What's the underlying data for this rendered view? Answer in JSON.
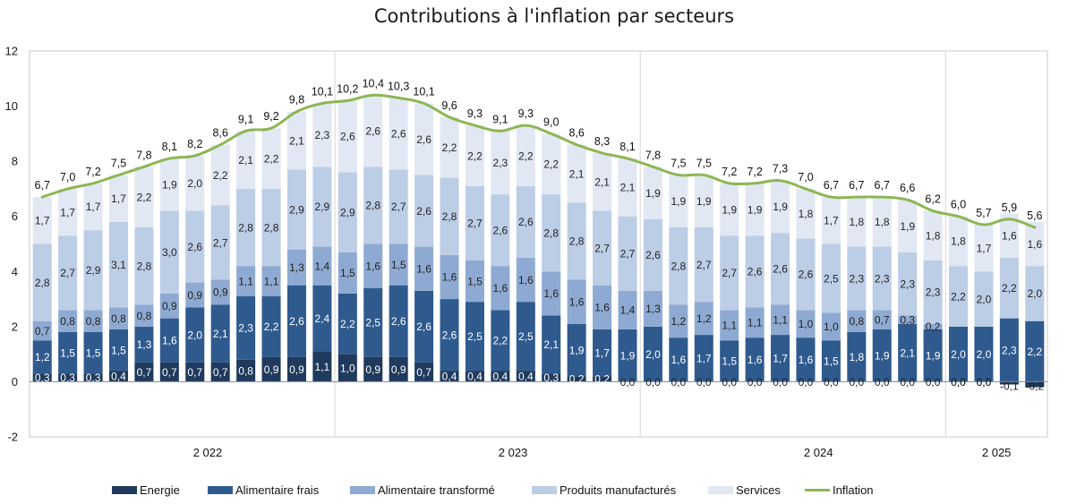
{
  "chart_data": {
    "type": "bar",
    "stacked": true,
    "title": "Contributions à l'inflation par secteurs",
    "xlabel": "",
    "ylabel": "",
    "ylim": [
      -2,
      12
    ],
    "yticks": [
      "-2",
      "0",
      "2",
      "4",
      "6",
      "8",
      "10",
      "12"
    ],
    "year_labels": [
      {
        "label": "2 022",
        "bar_index": 6
      },
      {
        "label": "2 023",
        "bar_index": 18
      },
      {
        "label": "2 024",
        "bar_index": 30
      },
      {
        "label": "2 025",
        "bar_index": 37
      }
    ],
    "year_separators_after_bar": [
      11,
      23,
      35
    ],
    "n_bars": 40,
    "series": [
      {
        "name": "Energie",
        "color": "#1f3a5c",
        "text_color": "light",
        "values": [
          0.3,
          0.3,
          0.3,
          0.4,
          0.7,
          0.7,
          0.7,
          0.7,
          0.8,
          0.9,
          0.9,
          1.1,
          1.0,
          0.9,
          0.9,
          0.7,
          0.4,
          0.4,
          0.4,
          0.4,
          0.3,
          0.2,
          0.2,
          0.0,
          0.0,
          0.0,
          0.0,
          0.0,
          0.0,
          0.0,
          0.0,
          0.0,
          0.0,
          0.0,
          0.0,
          0.0,
          0.0,
          0.0,
          -0.1,
          -0.2
        ],
        "labels": [
          "0,3",
          "0,3",
          "0,3",
          "0,4",
          "0,7",
          "0,7",
          "0,7",
          "0,7",
          "0,8",
          "0,9",
          "0,9",
          "1,1",
          "1,0",
          "0,9",
          "0,9",
          "0,7",
          "0,4",
          "0,4",
          "0,4",
          "0,4",
          "0,3",
          "0,2",
          "0,2",
          "0,0",
          "0,0",
          "0,0",
          "0,0",
          "0,0",
          "0,0",
          "0,0",
          "0,0",
          "0,0",
          "0,0",
          "0,0",
          "0,0",
          "0,0",
          "0,0",
          "0,0",
          "-0,1",
          "-0,2"
        ]
      },
      {
        "name": "Alimentaire frais",
        "color": "#2f5a8e",
        "text_color": "light",
        "values": [
          1.2,
          1.5,
          1.5,
          1.5,
          1.3,
          1.6,
          2.0,
          2.1,
          2.3,
          2.2,
          2.6,
          2.4,
          2.2,
          2.5,
          2.6,
          2.6,
          2.6,
          2.5,
          2.2,
          2.5,
          2.1,
          1.9,
          1.7,
          1.9,
          2.0,
          1.6,
          1.7,
          1.5,
          1.6,
          1.7,
          1.6,
          1.5,
          1.8,
          1.9,
          2.1,
          1.9,
          2.0,
          2.0,
          2.3,
          2.2
        ],
        "labels": [
          "1,2",
          "1,5",
          "1,5",
          "1,5",
          "1,3",
          "1,6",
          "2,0",
          "2,1",
          "2,3",
          "2,2",
          "2,6",
          "2,4",
          "2,2",
          "2,5",
          "2,6",
          "2,6",
          "2,6",
          "2,5",
          "2,2",
          "2,5",
          "2,1",
          "1,9",
          "1,7",
          "1,9",
          "2,0",
          "1,6",
          "1,7",
          "1,5",
          "1,6",
          "1,7",
          "1,6",
          "1,5",
          "1,8",
          "1,9",
          "2,1",
          "1,9",
          "2,0",
          "2,0",
          "2,3",
          "2,2"
        ]
      },
      {
        "name": "Alimentaire transformé",
        "color": "#8eaad2",
        "text_color": "dark",
        "values": [
          0.7,
          0.8,
          0.8,
          0.8,
          0.8,
          0.9,
          0.9,
          0.9,
          1.1,
          1.1,
          1.3,
          1.4,
          1.5,
          1.6,
          1.5,
          1.6,
          1.6,
          1.5,
          1.6,
          1.6,
          1.6,
          1.6,
          1.6,
          1.4,
          1.3,
          1.2,
          1.2,
          1.1,
          1.1,
          1.1,
          1.0,
          1.0,
          0.8,
          0.7,
          0.3,
          0.2,
          0.0,
          0.0,
          0.0,
          0.0
        ],
        "labels": [
          "0,7",
          "0,8",
          "0,8",
          "0,8",
          "0,8",
          "0,9",
          "0,9",
          "0,9",
          "1,1",
          "1,1",
          "1,3",
          "1,4",
          "1,5",
          "1,6",
          "1,5",
          "1,6",
          "1,6",
          "1,5",
          "1,6",
          "1,6",
          "1,6",
          "1,6",
          "1,6",
          "1,4",
          "1,3",
          "1,2",
          "1,2",
          "1,1",
          "1,1",
          "1,1",
          "1,0",
          "1,0",
          "0,8",
          "0,7",
          "0,3",
          "0,2",
          "0,0",
          "0,0",
          "",
          ""
        ]
      },
      {
        "name": "Produits manufacturés",
        "color": "#bccde6",
        "text_color": "dark",
        "values": [
          2.8,
          2.7,
          2.9,
          3.1,
          2.8,
          3.0,
          2.6,
          2.7,
          2.8,
          2.8,
          2.9,
          2.9,
          2.9,
          2.8,
          2.7,
          2.6,
          2.8,
          2.7,
          2.6,
          2.6,
          2.8,
          2.8,
          2.7,
          2.7,
          2.6,
          2.8,
          2.7,
          2.7,
          2.6,
          2.6,
          2.6,
          2.5,
          2.3,
          2.3,
          2.3,
          2.3,
          2.2,
          2.0,
          2.2,
          2.0
        ],
        "labels": [
          "2,8",
          "2,7",
          "2,9",
          "3,1",
          "2,8",
          "3,0",
          "2,6",
          "2,7",
          "2,8",
          "2,8",
          "2,9",
          "2,9",
          "2,9",
          "2,8",
          "2,7",
          "2,6",
          "2,8",
          "2,7",
          "2,6",
          "2,6",
          "2,8",
          "2,8",
          "2,7",
          "2,7",
          "2,6",
          "2,8",
          "2,7",
          "2,7",
          "2,6",
          "2,6",
          "2,6",
          "2,5",
          "2,3",
          "2,3",
          "2,3",
          "2,3",
          "2,2",
          "2,0",
          "2,2",
          "2,0"
        ]
      },
      {
        "name": "Services",
        "color": "#e1e8f3",
        "text_color": "dark",
        "values": [
          1.7,
          1.7,
          1.7,
          1.7,
          2.2,
          1.9,
          2.0,
          2.2,
          2.1,
          2.2,
          2.1,
          2.3,
          2.6,
          2.6,
          2.6,
          2.6,
          2.2,
          2.2,
          2.3,
          2.2,
          2.2,
          2.1,
          2.1,
          2.1,
          1.9,
          1.9,
          1.9,
          1.9,
          1.9,
          1.9,
          1.8,
          1.7,
          1.8,
          1.8,
          1.9,
          1.8,
          1.8,
          1.7,
          1.6,
          1.6
        ],
        "labels": [
          "1,7",
          "1,7",
          "1,7",
          "1,7",
          "2,2",
          "1,9",
          "2,0",
          "2,2",
          "2,1",
          "2,2",
          "2,1",
          "2,3",
          "2,6",
          "2,6",
          "2,6",
          "2,6",
          "2,2",
          "2,2",
          "2,3",
          "2,2",
          "2,2",
          "2,1",
          "2,1",
          "2,1",
          "1,9",
          "1,9",
          "1,9",
          "1,9",
          "1,9",
          "1,9",
          "1,8",
          "1,7",
          "1,8",
          "1,8",
          "1,9",
          "1,8",
          "1,8",
          "1,7",
          "1,6",
          "1,6"
        ]
      }
    ],
    "line": {
      "name": "Inflation",
      "color": "#8db654",
      "values": [
        6.7,
        7.0,
        7.2,
        7.5,
        7.8,
        8.1,
        8.2,
        8.6,
        9.1,
        9.2,
        9.8,
        10.1,
        10.2,
        10.4,
        10.3,
        10.1,
        9.6,
        9.3,
        9.1,
        9.3,
        9.0,
        8.6,
        8.3,
        8.1,
        7.8,
        7.5,
        7.5,
        7.2,
        7.2,
        7.3,
        7.0,
        6.7,
        6.7,
        6.7,
        6.6,
        6.2,
        6.0,
        5.7,
        5.9,
        5.6
      ],
      "labels": [
        "6,7",
        "7,0",
        "7,2",
        "7,5",
        "7,8",
        "8,1",
        "8,2",
        "8,6",
        "9,1",
        "9,2",
        "9,8",
        "10,1",
        "10,2",
        "10,4",
        "10,3",
        "10,1",
        "9,6",
        "9,3",
        "9,1",
        "9,3",
        "9,0",
        "8,6",
        "8,3",
        "8,1",
        "7,8",
        "7,5",
        "7,5",
        "7,2",
        "7,2",
        "7,3",
        "7,0",
        "6,7",
        "6,7",
        "6,7",
        "6,6",
        "6,2",
        "6,0",
        "5,7",
        "5,9",
        "5,6"
      ]
    },
    "legend": [
      "Energie",
      "Alimentaire frais",
      "Alimentaire transformé",
      "Produits manufacturés",
      "Services",
      "Inflation"
    ],
    "legend_position": "bottom",
    "grid": false
  }
}
